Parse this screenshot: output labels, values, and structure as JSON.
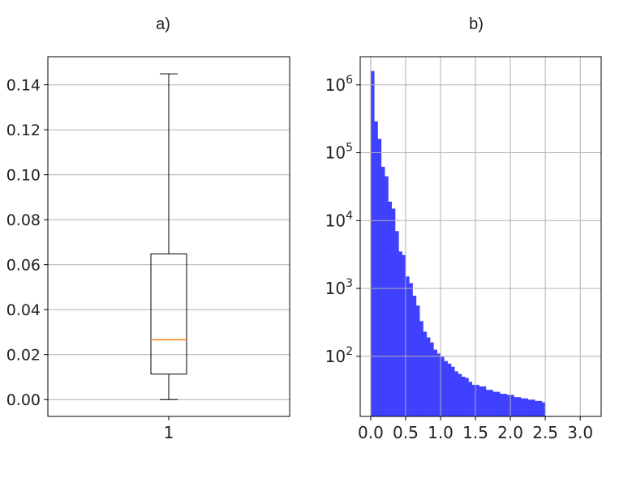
{
  "chart_data": [
    {
      "type": "box",
      "title": "a)",
      "xlabel": "",
      "ylabel": "",
      "categories": [
        "1"
      ],
      "ylim": [
        -0.0075,
        0.1525
      ],
      "yticks": [
        {
          "value": 0.0,
          "label": "0.00"
        },
        {
          "value": 0.02,
          "label": "0.02"
        },
        {
          "value": 0.04,
          "label": "0.04"
        },
        {
          "value": 0.06,
          "label": "0.06"
        },
        {
          "value": 0.08,
          "label": "0.08"
        },
        {
          "value": 0.1,
          "label": "0.10"
        },
        {
          "value": 0.12,
          "label": "0.12"
        },
        {
          "value": 0.14,
          "label": "0.14"
        }
      ],
      "grid": "horizontal",
      "box": {
        "whisker_low": 0.0,
        "q1": 0.0113,
        "median": 0.0266,
        "q3": 0.0648,
        "whisker_high": 0.1449
      },
      "colors": {
        "box": "#000000",
        "median": "#ff7f0e",
        "grid": "#b0b0b0"
      }
    },
    {
      "type": "bar",
      "subtype": "histogram",
      "title": "b)",
      "xlabel": "",
      "ylabel": "",
      "yscale": "log",
      "xlim": [
        -0.15,
        3.3
      ],
      "ylim": [
        13,
        2600000
      ],
      "xticks": [
        {
          "value": 0.0,
          "label": "0.0"
        },
        {
          "value": 0.5,
          "label": "0.5"
        },
        {
          "value": 1.0,
          "label": "1.0"
        },
        {
          "value": 1.5,
          "label": "1.5"
        },
        {
          "value": 2.0,
          "label": "2.0"
        },
        {
          "value": 2.5,
          "label": "2.5"
        },
        {
          "value": 3.0,
          "label": "3.0"
        }
      ],
      "yticks": [
        {
          "value": 100,
          "base": "10",
          "exp": "2"
        },
        {
          "value": 1000,
          "base": "10",
          "exp": "3"
        },
        {
          "value": 10000,
          "base": "10",
          "exp": "4"
        },
        {
          "value": 100000,
          "base": "10",
          "exp": "5"
        },
        {
          "value": 1000000,
          "base": "10",
          "exp": "6"
        }
      ],
      "grid": "both",
      "bin_start": 0.0,
      "bin_width": 0.05,
      "values": [
        1600000,
        290000,
        160000,
        62000,
        45000,
        19000,
        15000,
        7000,
        3500,
        3100,
        1500,
        1200,
        780,
        560,
        330,
        230,
        190,
        160,
        125,
        110,
        98,
        85,
        78,
        70,
        60,
        55,
        50,
        48,
        42,
        38,
        38,
        36,
        36,
        32,
        32,
        30,
        30,
        28,
        28,
        27,
        27,
        25,
        25,
        24,
        24,
        23,
        23,
        22,
        22,
        21
      ],
      "colors": {
        "bar": "#4040ff",
        "grid": "#b0b0b0"
      }
    }
  ]
}
